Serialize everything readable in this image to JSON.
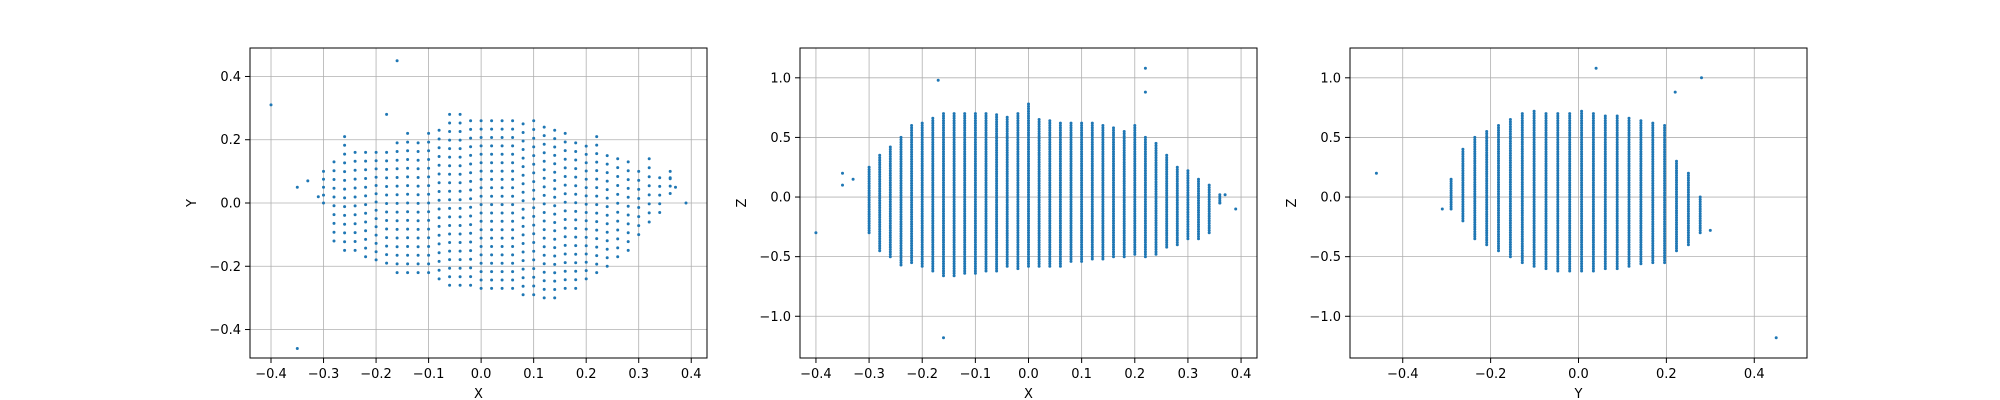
{
  "chart_data": [
    {
      "type": "scatter",
      "xlabel": "X",
      "ylabel": "Y",
      "xlim": [
        -0.44,
        0.43
      ],
      "ylim": [
        -0.49,
        0.49
      ],
      "xticks": [
        -0.4,
        -0.3,
        -0.2,
        -0.1,
        0.0,
        0.1,
        0.2,
        0.3,
        0.4
      ],
      "yticks": [
        -0.4,
        -0.2,
        0.0,
        0.2,
        0.4
      ],
      "xtick_labels": [
        "−0.4",
        "−0.3",
        "−0.2",
        "−0.1",
        "0.0",
        "0.1",
        "0.2",
        "0.3",
        "0.4"
      ],
      "ytick_labels": [
        "−0.4",
        "−0.2",
        "0.0",
        "0.2",
        "0.4"
      ],
      "grid": true,
      "color": "#1f77b4",
      "grid_lattice": {
        "x_start": -0.3,
        "x_step": 0.02,
        "y_step": 0.027,
        "columns": [
          [
            -0.3,
            0.0,
            0.1
          ],
          [
            -0.28,
            -0.12,
            0.13
          ],
          [
            -0.26,
            -0.15,
            0.21
          ],
          [
            -0.24,
            -0.15,
            0.16
          ],
          [
            -0.22,
            -0.17,
            0.16
          ],
          [
            -0.2,
            -0.18,
            0.16
          ],
          [
            -0.18,
            -0.19,
            0.16
          ],
          [
            -0.16,
            -0.22,
            0.19
          ],
          [
            -0.14,
            -0.22,
            0.22
          ],
          [
            -0.12,
            -0.22,
            0.19
          ],
          [
            -0.1,
            -0.22,
            0.22
          ],
          [
            -0.08,
            -0.24,
            0.23
          ],
          [
            -0.06,
            -0.26,
            0.28
          ],
          [
            -0.04,
            -0.26,
            0.28
          ],
          [
            -0.02,
            -0.26,
            0.26
          ],
          [
            0.0,
            -0.27,
            0.26
          ],
          [
            0.02,
            -0.27,
            0.26
          ],
          [
            0.04,
            -0.27,
            0.26
          ],
          [
            0.06,
            -0.27,
            0.26
          ],
          [
            0.08,
            -0.29,
            0.25
          ],
          [
            0.1,
            -0.29,
            0.26
          ],
          [
            0.12,
            -0.3,
            0.24
          ],
          [
            0.14,
            -0.3,
            0.23
          ],
          [
            0.16,
            -0.27,
            0.22
          ],
          [
            0.18,
            -0.27,
            0.19
          ],
          [
            0.2,
            -0.24,
            0.18
          ],
          [
            0.22,
            -0.22,
            0.21
          ],
          [
            0.24,
            -0.2,
            0.15
          ],
          [
            0.26,
            -0.17,
            0.14
          ],
          [
            0.28,
            -0.15,
            0.13
          ],
          [
            0.3,
            -0.1,
            0.1
          ],
          [
            0.32,
            -0.06,
            0.14
          ],
          [
            0.34,
            -0.03,
            0.08
          ],
          [
            0.36,
            0.03,
            0.1
          ]
        ]
      },
      "outliers": [
        [
          -0.4,
          0.31
        ],
        [
          -0.35,
          -0.46
        ],
        [
          -0.16,
          0.45
        ],
        [
          -0.35,
          0.05
        ],
        [
          -0.33,
          0.07
        ],
        [
          -0.31,
          0.02
        ],
        [
          -0.18,
          0.28
        ],
        [
          0.39,
          0.0
        ],
        [
          0.37,
          0.05
        ],
        [
          0.36,
          0.08
        ]
      ]
    },
    {
      "type": "scatter",
      "xlabel": "X",
      "ylabel": "Z",
      "xlim": [
        -0.43,
        0.43
      ],
      "ylim": [
        -1.35,
        1.25
      ],
      "xticks": [
        -0.4,
        -0.3,
        -0.2,
        -0.1,
        0.0,
        0.1,
        0.2,
        0.3,
        0.4
      ],
      "yticks": [
        -1.0,
        -0.5,
        0.0,
        0.5,
        1.0
      ],
      "xtick_labels": [
        "−0.4",
        "−0.3",
        "−0.2",
        "−0.1",
        "0.0",
        "0.1",
        "0.2",
        "0.3",
        "0.4"
      ],
      "ytick_labels": [
        "−1.0",
        "−0.5",
        "0.0",
        "0.5",
        "1.0"
      ],
      "grid": true,
      "color": "#1f77b4",
      "grid_lattice": {
        "x_start": -0.3,
        "x_step": 0.02,
        "y_step": 0.02,
        "columns": [
          [
            -0.3,
            -0.3,
            0.25
          ],
          [
            -0.28,
            -0.45,
            0.35
          ],
          [
            -0.26,
            -0.5,
            0.42
          ],
          [
            -0.24,
            -0.57,
            0.5
          ],
          [
            -0.22,
            -0.55,
            0.6
          ],
          [
            -0.2,
            -0.58,
            0.62
          ],
          [
            -0.18,
            -0.62,
            0.66
          ],
          [
            -0.16,
            -0.66,
            0.7
          ],
          [
            -0.14,
            -0.66,
            0.7
          ],
          [
            -0.12,
            -0.64,
            0.7
          ],
          [
            -0.1,
            -0.64,
            0.7
          ],
          [
            -0.08,
            -0.62,
            0.7
          ],
          [
            -0.06,
            -0.62,
            0.69
          ],
          [
            -0.04,
            -0.58,
            0.67
          ],
          [
            -0.02,
            -0.6,
            0.7
          ],
          [
            0.0,
            -0.58,
            0.78
          ],
          [
            0.02,
            -0.58,
            0.65
          ],
          [
            0.04,
            -0.58,
            0.64
          ],
          [
            0.06,
            -0.58,
            0.62
          ],
          [
            0.08,
            -0.54,
            0.62
          ],
          [
            0.1,
            -0.54,
            0.62
          ],
          [
            0.12,
            -0.52,
            0.62
          ],
          [
            0.14,
            -0.52,
            0.6
          ],
          [
            0.16,
            -0.5,
            0.58
          ],
          [
            0.18,
            -0.5,
            0.55
          ],
          [
            0.2,
            -0.48,
            0.6
          ],
          [
            0.22,
            -0.5,
            0.5
          ],
          [
            0.24,
            -0.48,
            0.45
          ],
          [
            0.26,
            -0.42,
            0.35
          ],
          [
            0.28,
            -0.4,
            0.25
          ],
          [
            0.3,
            -0.35,
            0.22
          ],
          [
            0.32,
            -0.35,
            0.15
          ],
          [
            0.34,
            -0.3,
            0.1
          ],
          [
            0.36,
            -0.05,
            0.02
          ]
        ]
      },
      "outliers": [
        [
          -0.4,
          -0.3
        ],
        [
          -0.35,
          0.2
        ],
        [
          -0.35,
          0.1
        ],
        [
          -0.33,
          0.15
        ],
        [
          -0.16,
          -1.18
        ],
        [
          -0.17,
          0.98
        ],
        [
          0.22,
          1.08
        ],
        [
          0.22,
          0.88
        ],
        [
          0.39,
          -0.1
        ],
        [
          0.37,
          0.02
        ],
        [
          0.36,
          -0.05
        ]
      ]
    },
    {
      "type": "scatter",
      "xlabel": "Y",
      "ylabel": "Z",
      "xlim": [
        -0.52,
        0.52
      ],
      "ylim": [
        -1.35,
        1.25
      ],
      "xticks": [
        -0.4,
        -0.2,
        0.0,
        0.2,
        0.4
      ],
      "yticks": [
        -1.0,
        -0.5,
        0.0,
        0.5,
        1.0
      ],
      "xtick_labels": [
        "−0.4",
        "−0.2",
        "0.0",
        "0.2",
        "0.4"
      ],
      "ytick_labels": [
        "−1.0",
        "−0.5",
        "0.0",
        "0.5",
        "1.0"
      ],
      "grid": true,
      "color": "#1f77b4",
      "grid_lattice": {
        "x_start": -0.29,
        "x_step": 0.027,
        "y_step": 0.02,
        "columns": [
          [
            -0.29,
            -0.1,
            0.15
          ],
          [
            -0.263,
            -0.2,
            0.4
          ],
          [
            -0.236,
            -0.35,
            0.5
          ],
          [
            -0.209,
            -0.4,
            0.55
          ],
          [
            -0.182,
            -0.45,
            0.6
          ],
          [
            -0.155,
            -0.5,
            0.65
          ],
          [
            -0.128,
            -0.55,
            0.7
          ],
          [
            -0.101,
            -0.58,
            0.72
          ],
          [
            -0.074,
            -0.6,
            0.7
          ],
          [
            -0.047,
            -0.62,
            0.7
          ],
          [
            -0.02,
            -0.62,
            0.7
          ],
          [
            0.007,
            -0.62,
            0.72
          ],
          [
            0.034,
            -0.62,
            0.7
          ],
          [
            0.061,
            -0.6,
            0.68
          ],
          [
            0.088,
            -0.6,
            0.68
          ],
          [
            0.115,
            -0.58,
            0.66
          ],
          [
            0.142,
            -0.56,
            0.64
          ],
          [
            0.169,
            -0.55,
            0.62
          ],
          [
            0.196,
            -0.55,
            0.6
          ],
          [
            0.223,
            -0.45,
            0.3
          ],
          [
            0.25,
            -0.4,
            0.2
          ],
          [
            0.277,
            -0.3,
            0.0
          ]
        ]
      },
      "outliers": [
        [
          -0.46,
          0.2
        ],
        [
          0.45,
          -1.18
        ],
        [
          0.04,
          1.08
        ],
        [
          0.28,
          1.0
        ],
        [
          0.3,
          -0.28
        ],
        [
          0.22,
          0.88
        ],
        [
          -0.31,
          -0.1
        ]
      ]
    }
  ]
}
